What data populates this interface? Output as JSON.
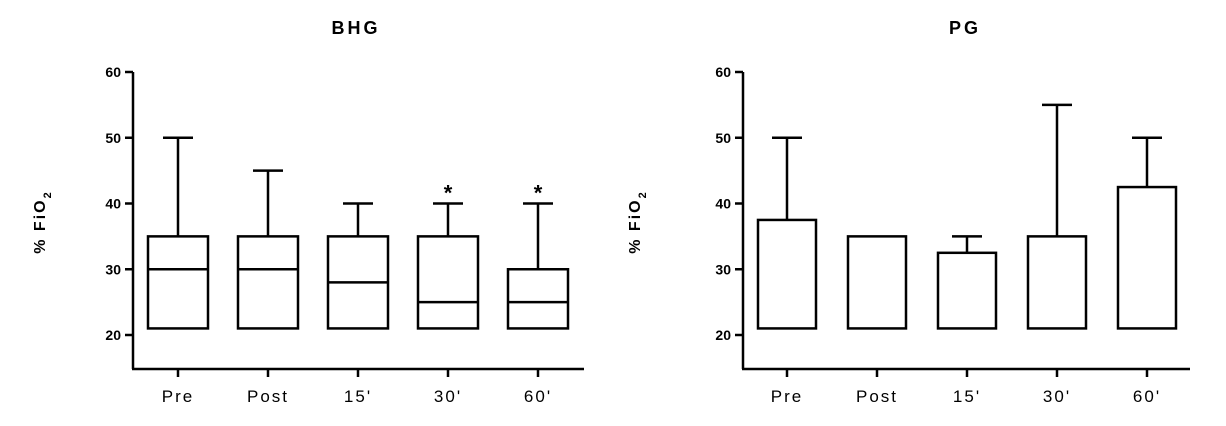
{
  "chart_data": [
    {
      "type": "box",
      "title": "BHG",
      "ylabel": "% FiO",
      "ylabel_subscript": "2",
      "ylim": [
        20,
        60
      ],
      "yticks": [
        20,
        30,
        40,
        50,
        60
      ],
      "categories": [
        "Pre",
        "Post",
        "15'",
        "30'",
        "60'"
      ],
      "boxes": [
        {
          "min": 21,
          "q1": 21,
          "median": 30,
          "q3": 35,
          "max": 50,
          "mark": ""
        },
        {
          "min": 21,
          "q1": 21,
          "median": 30,
          "q3": 35,
          "max": 45,
          "mark": ""
        },
        {
          "min": 21,
          "q1": 21,
          "median": 28,
          "q3": 35,
          "max": 40,
          "mark": ""
        },
        {
          "min": 21,
          "q1": 21,
          "median": 25,
          "q3": 35,
          "max": 40,
          "mark": "*"
        },
        {
          "min": 21,
          "q1": 21,
          "median": 25,
          "q3": 30,
          "max": 40,
          "mark": "*"
        }
      ]
    },
    {
      "type": "box",
      "title": "PG",
      "ylabel": "% FiO",
      "ylabel_subscript": "2",
      "ylim": [
        20,
        60
      ],
      "yticks": [
        20,
        30,
        40,
        50,
        60
      ],
      "categories": [
        "Pre",
        "Post",
        "15'",
        "30'",
        "60'"
      ],
      "boxes": [
        {
          "min": 21,
          "q1": 21,
          "median": 21,
          "q3": 37.5,
          "max": 50,
          "mark": ""
        },
        {
          "min": 21,
          "q1": 21,
          "median": 21,
          "q3": 35,
          "max": 35,
          "mark": ""
        },
        {
          "min": 21,
          "q1": 21,
          "median": 21,
          "q3": 32.5,
          "max": 35,
          "mark": ""
        },
        {
          "min": 21,
          "q1": 21,
          "median": 21,
          "q3": 35,
          "max": 55,
          "mark": ""
        },
        {
          "min": 21,
          "q1": 21,
          "median": 21,
          "q3": 42.5,
          "max": 50,
          "mark": ""
        }
      ]
    }
  ]
}
